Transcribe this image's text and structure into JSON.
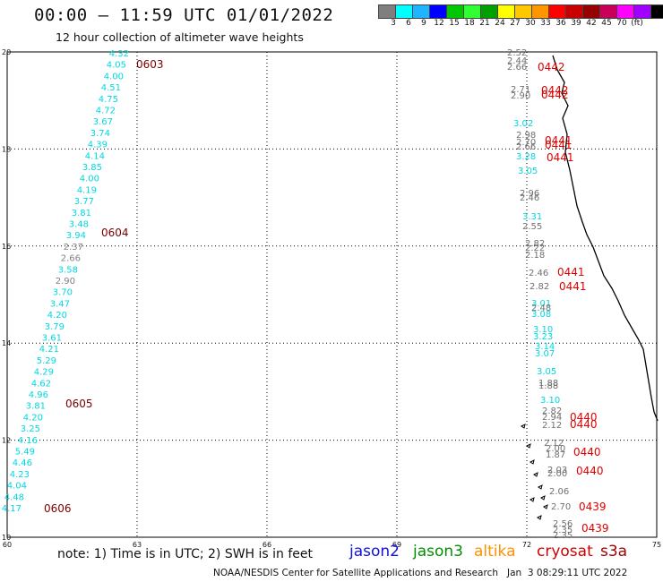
{
  "header": {
    "title": "00:00 – 11:59 UTC 01/01/2022",
    "subtitle": "12 hour collection of altimeter wave heights"
  },
  "legend": {
    "colors": [
      "#7f7f7f",
      "#00ffff",
      "#1eb4ff",
      "#0000ff",
      "#00c800",
      "#32ff32",
      "#00a000",
      "#ffff00",
      "#ffc800",
      "#ff9600",
      "#ff0000",
      "#c80000",
      "#960000",
      "#c8005a",
      "#ff00ff",
      "#a000ff",
      "#000000"
    ],
    "labels": [
      "3",
      "6",
      "9",
      "12",
      "15",
      "18",
      "21",
      "24",
      "27",
      "30",
      "33",
      "36",
      "39",
      "42",
      "45",
      "70",
      "(ft)"
    ]
  },
  "axes": {
    "x_ticks": [
      "60",
      "63",
      "66",
      "69",
      "72",
      "75"
    ],
    "y_ticks": [
      "20",
      "18",
      "16",
      "14",
      "12",
      "10"
    ]
  },
  "track_west": {
    "values": [
      "4.32",
      "4.05",
      "4.00",
      "4.51",
      "4.75",
      "4.72",
      "3.67",
      "3.74",
      "4.39",
      "4.14",
      "3.85",
      "4.00",
      "4.19",
      "3.77",
      "3.81",
      "3.48",
      "3.94",
      "2.37",
      "2.66",
      "3.58",
      "2.90",
      "3.70",
      "3.47",
      "4.20",
      "3.79",
      "3.61",
      "4.21",
      "5.29",
      "4.29",
      "4.62",
      "4.96",
      "3.81",
      "4.20",
      "3.25",
      "4.16",
      "5.49",
      "4.46",
      "4.23",
      "4.04",
      "4.48",
      "4.17"
    ],
    "times": [
      "0603",
      "0604",
      "0605",
      "0606"
    ]
  },
  "track_east": {
    "values": [
      "2.52",
      "2.44",
      "2.66",
      "2.71",
      "2.90",
      "3.02",
      "2.98",
      "2.70",
      "2.66",
      "3.28",
      "3.05",
      "2.96",
      "2.46",
      "3.31",
      "2.55",
      "2.82",
      "2.22",
      "2.18",
      "2.46",
      "2.82",
      "3.01",
      "2.48",
      "3.08",
      "3.10",
      "3.23",
      "3.14",
      "3.07",
      "3.05",
      "1.88",
      "1.88",
      "3.10",
      "2.82",
      "2.94",
      "2.12",
      "2.12",
      "2.00",
      "1.87",
      "2.03",
      "2.00",
      "2.06",
      "2.70",
      "2.56",
      "2.35",
      "2.35"
    ],
    "times": [
      "0442",
      "0442",
      "0442",
      "0441",
      "0441",
      "0441",
      "0441",
      "0441",
      "0440",
      "0440",
      "0440",
      "0440",
      "0439",
      "0439"
    ]
  },
  "bottom": {
    "note": "note: 1) Time is in UTC; 2) SWH is in feet",
    "satellites": [
      {
        "name": "jason2",
        "color": "#1010e0"
      },
      {
        "name": "jason3",
        "color": "#009000"
      },
      {
        "name": "altika",
        "color": "#ff9000"
      },
      {
        "name": "cryosat",
        "color": "#d00000"
      },
      {
        "name": "s3a",
        "color": "#a00000"
      }
    ],
    "credit": "NOAA/NESDIS Center for Satellite Applications and Research   Jan  3 08:29:11 UTC 2022"
  }
}
